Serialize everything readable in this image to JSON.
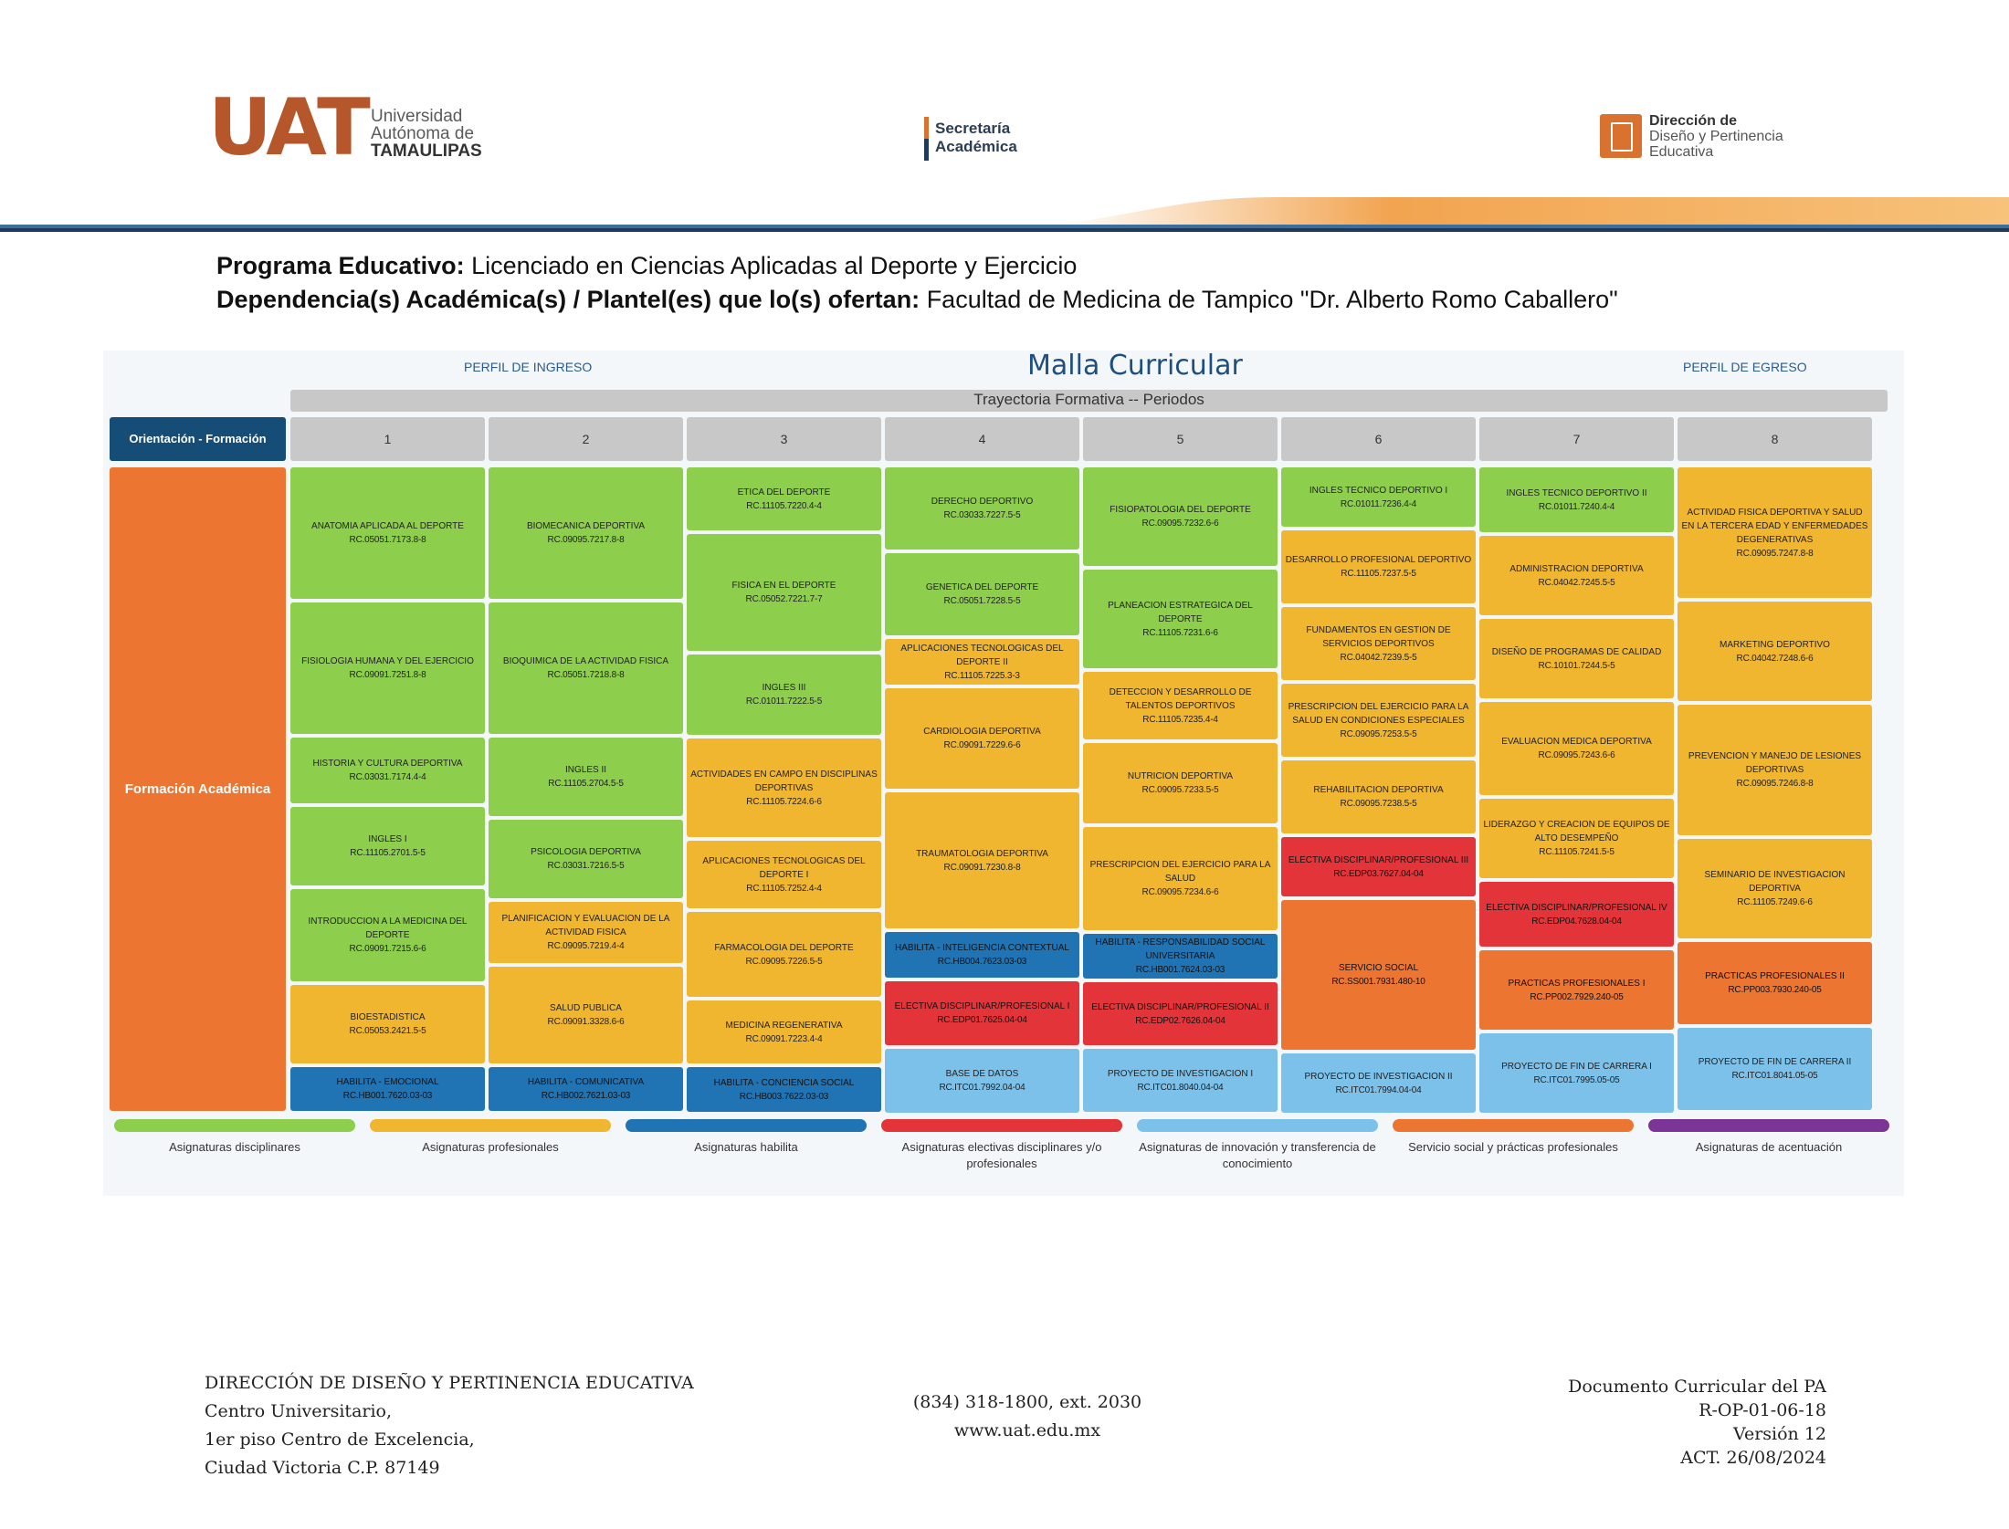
{
  "header": {
    "uat_logo": {
      "big": "UAT",
      "line1": "Universidad",
      "line2": "Autónoma de",
      "line3": "TAMAULIPAS"
    },
    "secretaria": {
      "line1": "Secretaría",
      "line2": "Académica"
    },
    "direccion": {
      "line1": "Dirección de",
      "line2": "Diseño y Pertinencia",
      "line3": "Educativa"
    }
  },
  "program": {
    "label1": "Programa Educativo:",
    "value1": " Licenciado en Ciencias Aplicadas al Deporte y Ejercicio",
    "label2": "Dependencia(s) Académica(s) / Plantel(es) que lo(s) ofertan:",
    "value2": " Facultad de Medicina de Tampico \"Dr. Alberto Romo Caballero\""
  },
  "malla": {
    "perfil_ingreso": "PERFIL DE INGRESO",
    "title": "Malla Curricular",
    "perfil_egreso": "PERFIL DE EGRESO",
    "trayectoria": "Trayectoria Formativa -- Periodos",
    "orientacion": "Orientación - Formación",
    "formacion": "Formación Académica",
    "periods": [
      "1",
      "2",
      "3",
      "4",
      "5",
      "6",
      "7",
      "8"
    ],
    "columns": [
      [
        {
          "name": "ANATOMIA APLICADA AL DEPORTE",
          "code": "RC.05051.7173.8-8",
          "type": "disciplinar",
          "size": 3
        },
        {
          "name": "FISIOLOGIA HUMANA Y DEL EJERCICIO",
          "code": "RC.09091.7251.8-8",
          "type": "disciplinar",
          "size": 3
        },
        {
          "name": "HISTORIA Y CULTURA DEPORTIVA",
          "code": "RC.03031.7174.4-4",
          "type": "disciplinar",
          "size": 1.5
        },
        {
          "name": "INGLES I",
          "code": "RC.11105.2701.5-5",
          "type": "disciplinar",
          "size": 1.8
        },
        {
          "name": "INTRODUCCION A LA MEDICINA DEL DEPORTE",
          "code": "RC.09091.7215.6-6",
          "type": "disciplinar",
          "size": 2.1
        },
        {
          "name": "BIOESTADISTICA",
          "code": "RC.05053.2421.5-5",
          "type": "profesional",
          "size": 1.8
        },
        {
          "name": "HABILITA - EMOCIONAL",
          "code": "RC.HB001.7620.03-03",
          "type": "habilita",
          "size": 1
        }
      ],
      [
        {
          "name": "BIOMECANICA DEPORTIVA",
          "code": "RC.09095.7217.8-8",
          "type": "disciplinar",
          "size": 3
        },
        {
          "name": "BIOQUIMICA DE LA ACTIVIDAD FISICA",
          "code": "RC.05051.7218.8-8",
          "type": "disciplinar",
          "size": 3
        },
        {
          "name": "INGLES II",
          "code": "RC.11105.2704.5-5",
          "type": "disciplinar",
          "size": 1.8
        },
        {
          "name": "PSICOLOGIA DEPORTIVA",
          "code": "RC.03031.7216.5-5",
          "type": "disciplinar",
          "size": 1.8
        },
        {
          "name": "PLANIFICACION Y EVALUACION DE LA ACTIVIDAD FISICA",
          "code": "RC.09095.7219.4-4",
          "type": "profesional",
          "size": 1.4
        },
        {
          "name": "SALUD PUBLICA",
          "code": "RC.09091.3328.6-6",
          "type": "profesional",
          "size": 2.2
        },
        {
          "name": "HABILITA - COMUNICATIVA",
          "code": "RC.HB002.7621.03-03",
          "type": "habilita",
          "size": 1
        }
      ],
      [
        {
          "name": "ETICA DEL DEPORTE",
          "code": "RC.11105.7220.4-4",
          "type": "disciplinar",
          "size": 1.4
        },
        {
          "name": "FISICA EN EL DEPORTE",
          "code": "RC.05052.7221.7-7",
          "type": "disciplinar",
          "size": 2.6
        },
        {
          "name": "INGLES III",
          "code": "RC.01011.7222.5-5",
          "type": "disciplinar",
          "size": 1.8
        },
        {
          "name": "ACTIVIDADES EN CAMPO EN DISCIPLINAS DEPORTIVAS",
          "code": "RC.11105.7224.6-6",
          "type": "profesional",
          "size": 2.2
        },
        {
          "name": "APLICACIONES TECNOLOGICAS DEL DEPORTE I",
          "code": "RC.11105.7252.4-4",
          "type": "profesional",
          "size": 1.5
        },
        {
          "name": "FARMACOLOGIA DEL DEPORTE",
          "code": "RC.09095.7226.5-5",
          "type": "profesional",
          "size": 1.9
        },
        {
          "name": "MEDICINA REGENERATIVA",
          "code": "RC.09091.7223.4-4",
          "type": "profesional",
          "size": 1.4
        },
        {
          "name": "HABILITA - CONCIENCIA SOCIAL",
          "code": "RC.HB003.7622.03-03",
          "type": "habilita",
          "size": 1
        }
      ],
      [
        {
          "name": "DERECHO DEPORTIVO",
          "code": "RC.03033.7227.5-5",
          "type": "disciplinar",
          "size": 1.8
        },
        {
          "name": "GENETICA DEL DEPORTE",
          "code": "RC.05051.7228.5-5",
          "type": "disciplinar",
          "size": 1.8
        },
        {
          "name": "APLICACIONES TECNOLOGICAS DEL DEPORTE II",
          "code": "RC.11105.7225.3-3",
          "type": "profesional",
          "size": 1
        },
        {
          "name": "CARDIOLOGIA DEPORTIVA",
          "code": "RC.09091.7229.6-6",
          "type": "profesional",
          "size": 2.2
        },
        {
          "name": "TRAUMATOLOGIA DEPORTIVA",
          "code": "RC.09091.7230.8-8",
          "type": "profesional",
          "size": 3
        },
        {
          "name": "HABILITA - INTELIGENCIA CONTEXTUAL",
          "code": "RC.HB004.7623.03-03",
          "type": "habilita",
          "size": 1
        },
        {
          "name": "ELECTIVA DISCIPLINAR/PROFESIONAL I",
          "code": "RC.EDP01.7625.04-04",
          "type": "electiva",
          "size": 1.4
        },
        {
          "name": "BASE DE DATOS",
          "code": "RC.ITC01.7992.04-04",
          "type": "innovacion",
          "size": 1.4
        }
      ],
      [
        {
          "name": "FISIOPATOLOGIA DEL DEPORTE",
          "code": "RC.09095.7232.6-6",
          "type": "disciplinar",
          "size": 2.2
        },
        {
          "name": "PLANEACION ESTRATEGICA DEL DEPORTE",
          "code": "RC.11105.7231.6-6",
          "type": "disciplinar",
          "size": 2.2
        },
        {
          "name": "DETECCION Y DESARROLLO DE TALENTOS DEPORTIVOS",
          "code": "RC.11105.7235.4-4",
          "type": "profesional",
          "size": 1.5
        },
        {
          "name": "NUTRICION DEPORTIVA",
          "code": "RC.09095.7233.5-5",
          "type": "profesional",
          "size": 1.8
        },
        {
          "name": "PRESCRIPCION DEL EJERCICIO PARA LA SALUD",
          "code": "RC.09095.7234.6-6",
          "type": "profesional",
          "size": 2.3
        },
        {
          "name": "HABILITA - RESPONSABILIDAD SOCIAL UNIVERSITARIA",
          "code": "RC.HB001.7624.03-03",
          "type": "habilita",
          "size": 1
        },
        {
          "name": "ELECTIVA DISCIPLINAR/PROFESIONAL II",
          "code": "RC.EDP02.7626.04-04",
          "type": "electiva",
          "size": 1.4
        },
        {
          "name": "PROYECTO DE INVESTIGACION I",
          "code": "RC.ITC01.8040.04-04",
          "type": "innovacion",
          "size": 1.4
        }
      ],
      [
        {
          "name": "INGLES TECNICO DEPORTIVO I",
          "code": "RC.01011.7236.4-4",
          "type": "disciplinar",
          "size": 1.3
        },
        {
          "name": "DESARROLLO PROFESIONAL DEPORTIVO",
          "code": "RC.11105.7237.5-5",
          "type": "profesional",
          "size": 1.6
        },
        {
          "name": "FUNDAMENTOS EN GESTION DE SERVICIOS DEPORTIVOS",
          "code": "RC.04042.7239.5-5",
          "type": "profesional",
          "size": 1.6
        },
        {
          "name": "PRESCRIPCION DEL EJERCICIO PARA LA SALUD EN CONDICIONES ESPECIALES",
          "code": "RC.09095.7253.5-5",
          "type": "profesional",
          "size": 1.6
        },
        {
          "name": "REHABILITACION DEPORTIVA",
          "code": "RC.09095.7238.5-5",
          "type": "profesional",
          "size": 1.6
        },
        {
          "name": "ELECTIVA DISCIPLINAR/PROFESIONAL III",
          "code": "RC.EDP03.7627.04-04",
          "type": "electiva",
          "size": 1.3
        },
        {
          "name": "SERVICIO SOCIAL",
          "code": "RC.SS001.7931.480-10",
          "type": "servicio",
          "size": 3.3
        },
        {
          "name": "PROYECTO DE INVESTIGACION II",
          "code": "RC.ITC01.7994.04-04",
          "type": "innovacion",
          "size": 1.3
        }
      ],
      [
        {
          "name": "INGLES TECNICO DEPORTIVO II",
          "code": "RC.01011.7240.4-4",
          "type": "disciplinar",
          "size": 1.4
        },
        {
          "name": "ADMINISTRACION DEPORTIVA",
          "code": "RC.04042.7245.5-5",
          "type": "profesional",
          "size": 1.7
        },
        {
          "name": "DISEÑO DE PROGRAMAS DE CALIDAD",
          "code": "RC.10101.7244.5-5",
          "type": "profesional",
          "size": 1.7
        },
        {
          "name": "EVALUACION MEDICA DEPORTIVA",
          "code": "RC.09095.7243.6-6",
          "type": "profesional",
          "size": 2
        },
        {
          "name": "LIDERAZGO Y CREACION DE EQUIPOS DE ALTO DESEMPEÑO",
          "code": "RC.11105.7241.5-5",
          "type": "profesional",
          "size": 1.7
        },
        {
          "name": "ELECTIVA DISCIPLINAR/PROFESIONAL IV",
          "code": "RC.EDP04.7628.04-04",
          "type": "electiva",
          "size": 1.4
        },
        {
          "name": "PRACTICAS PROFESIONALES I",
          "code": "RC.PP002.7929.240-05",
          "type": "servicio",
          "size": 1.7
        },
        {
          "name": "PROYECTO DE FIN DE CARRERA I",
          "code": "RC.ITC01.7995.05-05",
          "type": "innovacion",
          "size": 1.7
        }
      ],
      [
        {
          "name": "ACTIVIDAD FISICA DEPORTIVA Y SALUD EN LA TERCERA EDAD Y ENFERMEDADES DEGENERATIVAS",
          "code": "RC.09095.7247.8-8",
          "type": "profesional",
          "size": 3
        },
        {
          "name": "MARKETING DEPORTIVO",
          "code": "RC.04042.7248.6-6",
          "type": "profesional",
          "size": 2.3
        },
        {
          "name": "PREVENCION Y MANEJO DE LESIONES DEPORTIVAS",
          "code": "RC.09095.7246.8-8",
          "type": "profesional",
          "size": 3
        },
        {
          "name": "SEMINARIO DE INVESTIGACION DEPORTIVA",
          "code": "RC.11105.7249.6-6",
          "type": "profesional",
          "size": 2.3
        },
        {
          "name": "PRACTICAS PROFESIONALES II",
          "code": "RC.PP003.7930.240-05",
          "type": "servicio",
          "size": 1.9
        },
        {
          "name": "PROYECTO DE FIN DE CARRERA II",
          "code": "RC.ITC01.8041.05-05",
          "type": "innovacion",
          "size": 1.9
        }
      ]
    ],
    "legend": [
      {
        "label": "Asignaturas disciplinares",
        "color": "#8dcf4c"
      },
      {
        "label": "Asignaturas profesionales",
        "color": "#f0b630"
      },
      {
        "label": "Asignaturas habilita",
        "color": "#2074b4"
      },
      {
        "label": "Asignaturas electivas disciplinares y/o profesionales",
        "color": "#e3343a"
      },
      {
        "label": "Asignaturas de innovación y transferencia de conocimiento",
        "color": "#7cc1ea"
      },
      {
        "label": "Servicio social y prácticas profesionales",
        "color": "#ec7531"
      },
      {
        "label": "Asignaturas de acentuación",
        "color": "#7a3597"
      }
    ],
    "type_colors": {
      "disciplinar": "#8dcf4c",
      "profesional": "#f0b630",
      "habilita": "#2074b4",
      "electiva": "#e3343a",
      "innovacion": "#7cc1ea",
      "servicio": "#ec7531"
    }
  },
  "footer": {
    "left": [
      "DIRECCIÓN DE DISEÑO Y PERTINENCIA EDUCATIVA",
      "Centro Universitario,",
      "1er piso Centro de Excelencia,",
      "Ciudad Victoria C.P. 87149"
    ],
    "center": [
      "(834) 318-1800, ext. 2030",
      "www.uat.edu.mx"
    ],
    "right": [
      "Documento Curricular del PA",
      "R-OP-01-06-18",
      "Versión 12",
      "ACT. 26/08/2024"
    ]
  }
}
